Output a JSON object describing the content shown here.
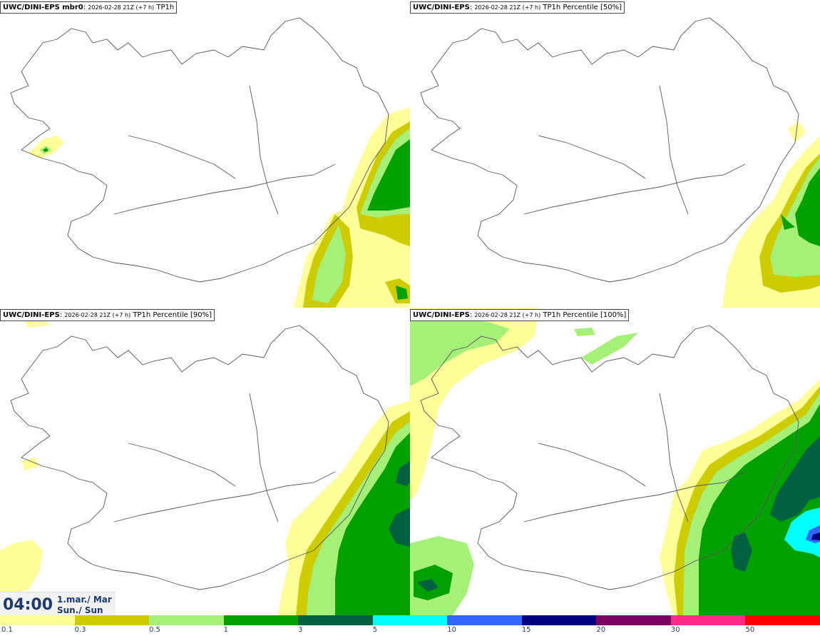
{
  "panels": [
    {
      "model": "UWC/DINI-EPS mbr0",
      "run": "2026-02-28 21Z (+7 h)",
      "field": "TP1h"
    },
    {
      "model": "UWC/DINI-EPS",
      "run": "2026-02-28 21Z (+7 h)",
      "field": "TP1h Percentile [50%]"
    },
    {
      "model": "UWC/DINI-EPS",
      "run": "2026-02-28 21Z (+7 h)",
      "field": "TP1h Percentile [90%]"
    },
    {
      "model": "UWC/DINI-EPS",
      "run": "2026-02-28 21Z (+7 h)",
      "field": "TP1h Percentile [100%]"
    }
  ],
  "valid_time": {
    "clock": "04:00",
    "date_line1": "1.mar./ Mar",
    "date_line2": "Sun./ Sun"
  },
  "legend": {
    "colors": [
      "#ffff99",
      "#cccc00",
      "#a6f07a",
      "#00a000",
      "#006040",
      "#00ffff",
      "#3366ff",
      "#000080",
      "#7a0060",
      "#ff2a8a",
      "#ff0000"
    ],
    "ticks": [
      "0.1",
      "0.3",
      "0.5",
      "1",
      "3",
      "5",
      "10",
      "15",
      "20",
      "30",
      "50"
    ]
  }
}
